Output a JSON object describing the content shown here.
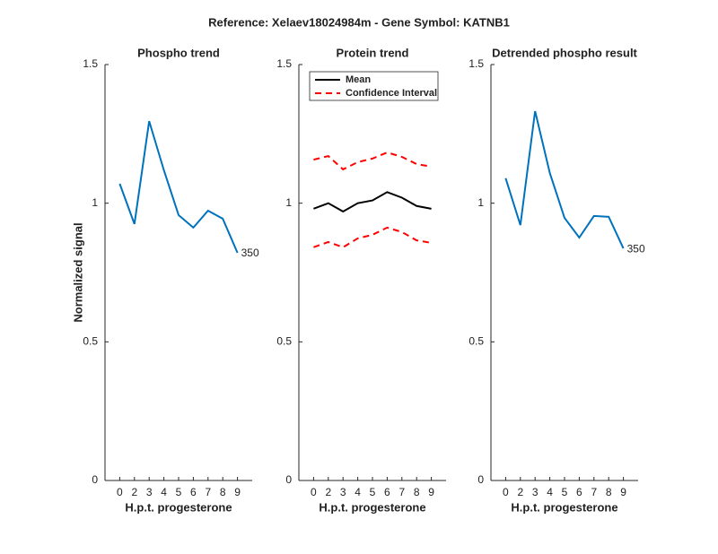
{
  "title": "Reference:  Xelaev18024984m - Gene Symbol:  KATNB1",
  "chart_data": [
    {
      "type": "line",
      "title": "Phospho trend",
      "xlabel": "H.p.t. progesterone",
      "ylabel": "Normalized signal",
      "categories": [
        "0",
        "2",
        "3",
        "4",
        "5",
        "6",
        "7",
        "8",
        "9"
      ],
      "series": [
        {
          "color": "#0072bd",
          "values": [
            1.07,
            0.925,
            1.296,
            1.119,
            0.957,
            0.912,
            0.973,
            0.944,
            0.821
          ]
        }
      ],
      "annotation": "350",
      "ylim": [
        0,
        1.5
      ],
      "yticks": [
        0,
        0.5,
        1,
        1.5
      ]
    },
    {
      "type": "line",
      "title": "Protein trend",
      "xlabel": "H.p.t. progesterone",
      "categories": [
        "0",
        "2",
        "3",
        "4",
        "5",
        "6",
        "7",
        "8",
        "9"
      ],
      "series": [
        {
          "name": "Mean",
          "color": "#000000",
          "values": [
            0.98,
            1.0,
            0.97,
            1.0,
            1.01,
            1.04,
            1.02,
            0.99,
            0.98
          ]
        },
        {
          "name": "Confidence Interval",
          "color": "#ff0000",
          "linestyle": "dashed",
          "upper": [
            1.157,
            1.17,
            1.122,
            1.148,
            1.161,
            1.183,
            1.167,
            1.141,
            1.132
          ],
          "lower": [
            0.841,
            0.86,
            0.841,
            0.873,
            0.886,
            0.912,
            0.896,
            0.866,
            0.857
          ]
        }
      ],
      "legend": "upper left",
      "ylim": [
        0,
        1.5
      ],
      "yticks": [
        0,
        0.5,
        1,
        1.5
      ]
    },
    {
      "type": "line",
      "title": "Detrended phospho result",
      "xlabel": "H.p.t. progesterone",
      "categories": [
        "0",
        "2",
        "3",
        "4",
        "5",
        "6",
        "7",
        "8",
        "9"
      ],
      "series": [
        {
          "color": "#0072bd",
          "values": [
            1.09,
            0.921,
            1.332,
            1.109,
            0.947,
            0.876,
            0.954,
            0.951,
            0.837
          ]
        }
      ],
      "annotation": "350",
      "ylim": [
        0,
        1.5
      ],
      "yticks": [
        0,
        0.5,
        1,
        1.5
      ]
    }
  ]
}
